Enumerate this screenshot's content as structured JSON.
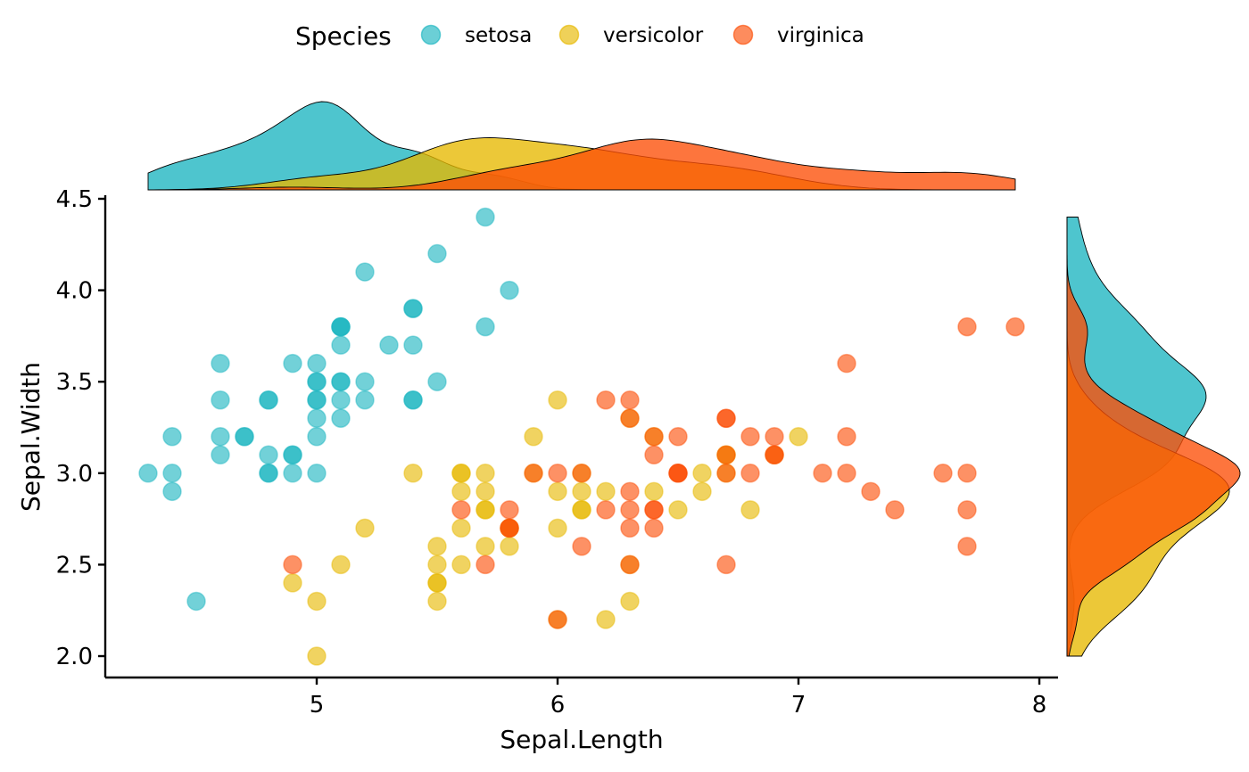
{
  "chart_data": {
    "type": "scatter",
    "xlabel": "Sepal.Length",
    "ylabel": "Sepal.Width",
    "xlim": [
      4.12,
      8.08
    ],
    "ylim": [
      1.88,
      4.52
    ],
    "x_ticks": [
      5,
      6,
      7,
      8
    ],
    "y_ticks": [
      2.0,
      2.5,
      3.0,
      3.5,
      4.0,
      4.5
    ],
    "x_tick_labels": [
      "5",
      "6",
      "7",
      "8"
    ],
    "y_tick_labels": [
      "2.0",
      "2.5",
      "3.0",
      "3.5",
      "4.0",
      "4.5"
    ],
    "legend": {
      "title": "Species",
      "position": "top"
    },
    "grid": false,
    "marginal_plots": "density",
    "series": [
      {
        "name": "setosa",
        "color": "#1CB5C0",
        "points": [
          [
            5.1,
            3.5
          ],
          [
            4.9,
            3.0
          ],
          [
            4.7,
            3.2
          ],
          [
            4.6,
            3.1
          ],
          [
            5.0,
            3.6
          ],
          [
            5.4,
            3.9
          ],
          [
            4.6,
            3.4
          ],
          [
            5.0,
            3.4
          ],
          [
            4.4,
            2.9
          ],
          [
            4.9,
            3.1
          ],
          [
            5.4,
            3.7
          ],
          [
            4.8,
            3.4
          ],
          [
            4.8,
            3.0
          ],
          [
            4.3,
            3.0
          ],
          [
            5.8,
            4.0
          ],
          [
            5.7,
            4.4
          ],
          [
            5.4,
            3.9
          ],
          [
            5.1,
            3.5
          ],
          [
            5.7,
            3.8
          ],
          [
            5.1,
            3.8
          ],
          [
            5.4,
            3.4
          ],
          [
            5.1,
            3.7
          ],
          [
            4.6,
            3.6
          ],
          [
            5.1,
            3.3
          ],
          [
            4.8,
            3.4
          ],
          [
            5.0,
            3.0
          ],
          [
            5.0,
            3.4
          ],
          [
            5.2,
            3.5
          ],
          [
            5.2,
            3.4
          ],
          [
            4.7,
            3.2
          ],
          [
            4.8,
            3.1
          ],
          [
            5.4,
            3.4
          ],
          [
            5.2,
            4.1
          ],
          [
            5.5,
            4.2
          ],
          [
            4.9,
            3.1
          ],
          [
            5.0,
            3.2
          ],
          [
            5.5,
            3.5
          ],
          [
            4.9,
            3.6
          ],
          [
            4.4,
            3.0
          ],
          [
            5.1,
            3.4
          ],
          [
            5.0,
            3.5
          ],
          [
            4.5,
            2.3
          ],
          [
            4.4,
            3.2
          ],
          [
            5.0,
            3.5
          ],
          [
            5.1,
            3.8
          ],
          [
            4.8,
            3.0
          ],
          [
            5.1,
            3.8
          ],
          [
            4.6,
            3.2
          ],
          [
            5.3,
            3.7
          ],
          [
            5.0,
            3.3
          ]
        ]
      },
      {
        "name": "versicolor",
        "color": "#E7B800",
        "points": [
          [
            7.0,
            3.2
          ],
          [
            6.4,
            3.2
          ],
          [
            6.9,
            3.1
          ],
          [
            5.5,
            2.3
          ],
          [
            6.5,
            2.8
          ],
          [
            5.7,
            2.8
          ],
          [
            6.3,
            3.3
          ],
          [
            4.9,
            2.4
          ],
          [
            6.6,
            2.9
          ],
          [
            5.2,
            2.7
          ],
          [
            5.0,
            2.0
          ],
          [
            5.9,
            3.0
          ],
          [
            6.0,
            2.2
          ],
          [
            6.1,
            2.9
          ],
          [
            5.6,
            2.9
          ],
          [
            6.7,
            3.1
          ],
          [
            5.6,
            3.0
          ],
          [
            5.8,
            2.7
          ],
          [
            6.2,
            2.2
          ],
          [
            5.6,
            2.5
          ],
          [
            5.9,
            3.2
          ],
          [
            6.1,
            2.8
          ],
          [
            6.3,
            2.5
          ],
          [
            6.1,
            2.8
          ],
          [
            6.4,
            2.9
          ],
          [
            6.6,
            3.0
          ],
          [
            6.8,
            2.8
          ],
          [
            6.7,
            3.0
          ],
          [
            6.0,
            2.9
          ],
          [
            5.7,
            2.6
          ],
          [
            5.5,
            2.4
          ],
          [
            5.5,
            2.4
          ],
          [
            5.8,
            2.7
          ],
          [
            6.0,
            2.7
          ],
          [
            5.4,
            3.0
          ],
          [
            6.0,
            3.4
          ],
          [
            6.7,
            3.1
          ],
          [
            6.3,
            2.3
          ],
          [
            5.6,
            3.0
          ],
          [
            5.5,
            2.5
          ],
          [
            5.5,
            2.6
          ],
          [
            6.1,
            3.0
          ],
          [
            5.8,
            2.6
          ],
          [
            5.0,
            2.3
          ],
          [
            5.6,
            2.7
          ],
          [
            5.7,
            3.0
          ],
          [
            5.7,
            2.9
          ],
          [
            6.2,
            2.9
          ],
          [
            5.1,
            2.5
          ],
          [
            5.7,
            2.8
          ]
        ]
      },
      {
        "name": "virginica",
        "color": "#FC4E07",
        "points": [
          [
            6.3,
            3.3
          ],
          [
            5.8,
            2.7
          ],
          [
            7.1,
            3.0
          ],
          [
            6.3,
            2.9
          ],
          [
            6.5,
            3.0
          ],
          [
            7.6,
            3.0
          ],
          [
            4.9,
            2.5
          ],
          [
            7.3,
            2.9
          ],
          [
            6.7,
            2.5
          ],
          [
            7.2,
            3.6
          ],
          [
            6.5,
            3.2
          ],
          [
            6.4,
            2.7
          ],
          [
            6.8,
            3.0
          ],
          [
            5.7,
            2.5
          ],
          [
            5.8,
            2.8
          ],
          [
            6.4,
            3.2
          ],
          [
            6.5,
            3.0
          ],
          [
            7.7,
            3.8
          ],
          [
            7.7,
            2.6
          ],
          [
            6.0,
            2.2
          ],
          [
            6.9,
            3.2
          ],
          [
            5.6,
            2.8
          ],
          [
            7.7,
            2.8
          ],
          [
            6.3,
            2.7
          ],
          [
            6.7,
            3.3
          ],
          [
            7.2,
            3.2
          ],
          [
            6.2,
            2.8
          ],
          [
            6.1,
            3.0
          ],
          [
            6.4,
            2.8
          ],
          [
            7.2,
            3.0
          ],
          [
            7.4,
            2.8
          ],
          [
            7.9,
            3.8
          ],
          [
            6.4,
            2.8
          ],
          [
            6.3,
            2.8
          ],
          [
            6.1,
            2.6
          ],
          [
            7.7,
            3.0
          ],
          [
            6.3,
            3.4
          ],
          [
            6.4,
            3.1
          ],
          [
            6.0,
            3.0
          ],
          [
            6.9,
            3.1
          ],
          [
            6.7,
            3.1
          ],
          [
            6.9,
            3.1
          ],
          [
            5.8,
            2.7
          ],
          [
            6.8,
            3.2
          ],
          [
            6.7,
            3.3
          ],
          [
            6.7,
            3.0
          ],
          [
            6.3,
            2.5
          ],
          [
            6.5,
            3.0
          ],
          [
            6.2,
            3.4
          ],
          [
            5.9,
            3.0
          ]
        ]
      }
    ]
  }
}
